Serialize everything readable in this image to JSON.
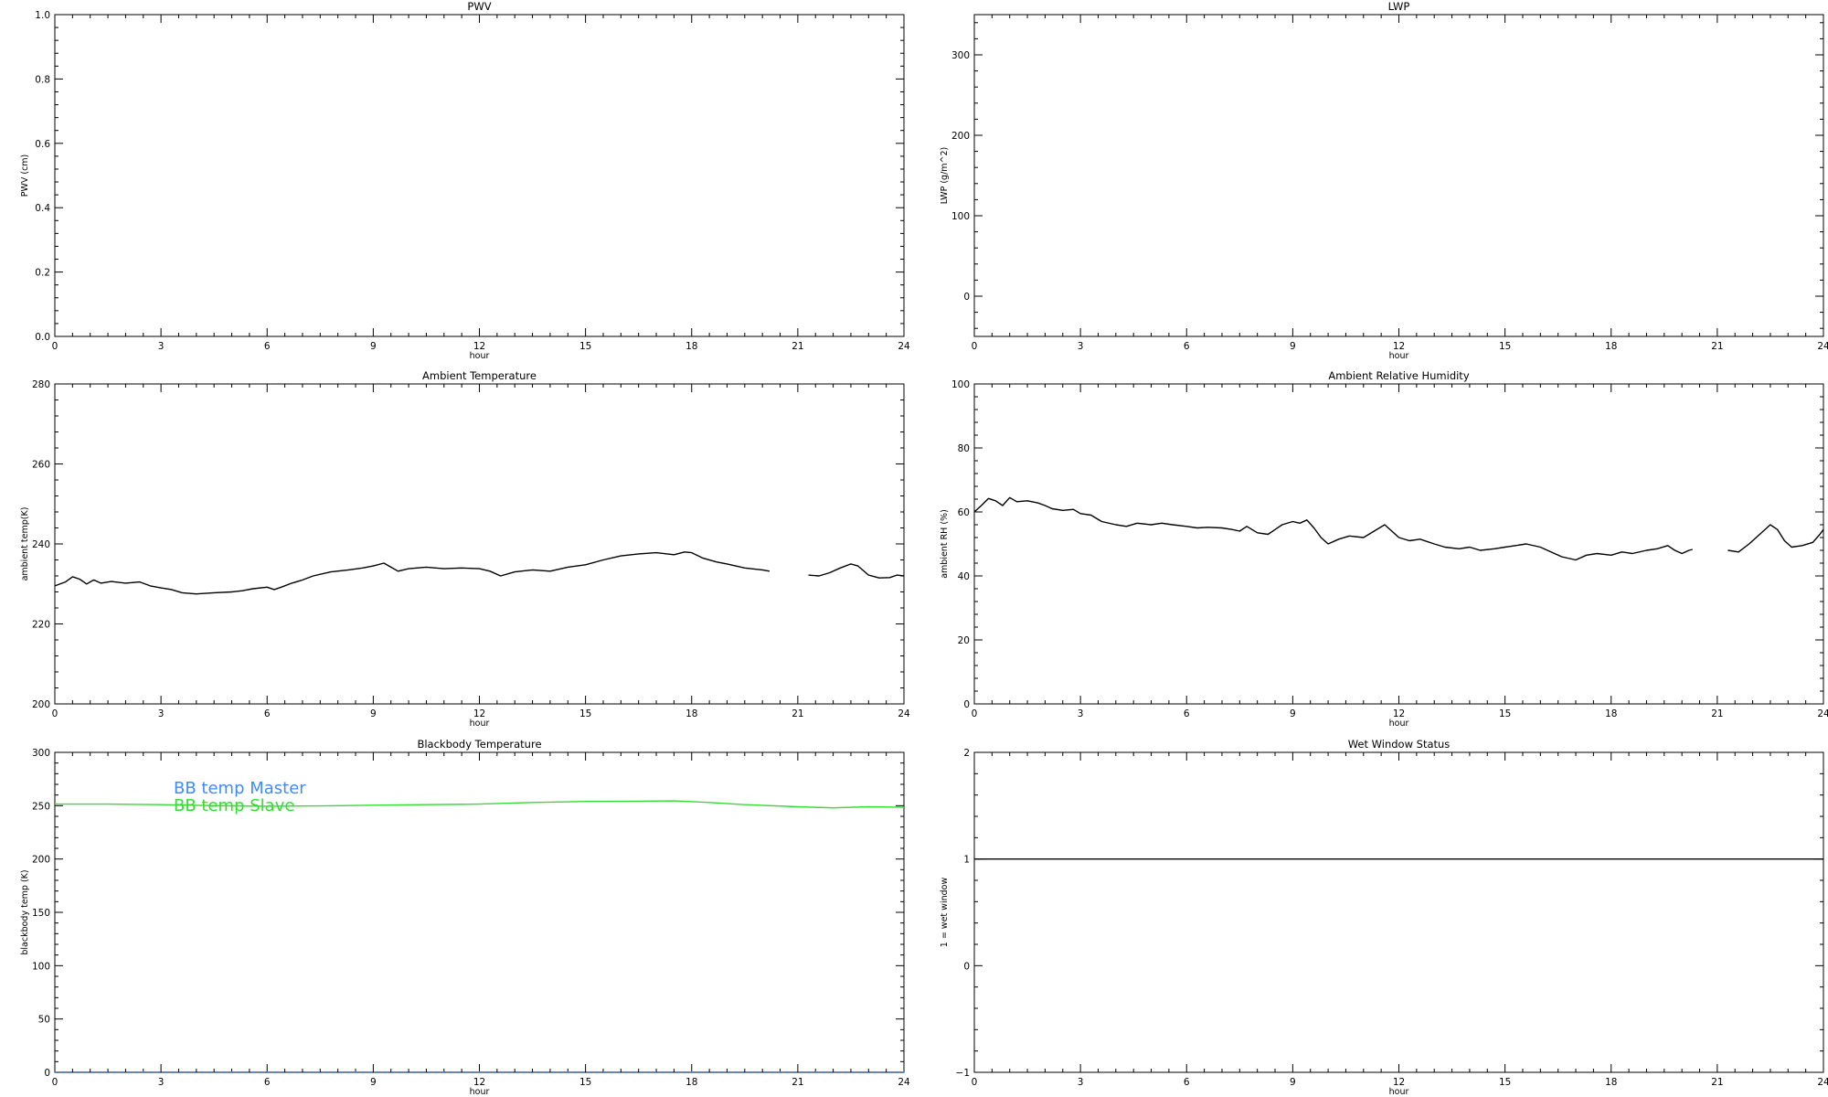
{
  "panels": [
    {
      "id": "pwv",
      "title": "PWV",
      "chart_data": {
        "type": "line",
        "title": "PWV",
        "xlabel": "hour",
        "ylabel": "PWV (cm)",
        "xlim": [
          0,
          24
        ],
        "ylim": [
          0.0,
          1.0
        ],
        "xticks": [
          "0",
          "3",
          "6",
          "9",
          "12",
          "15",
          "18",
          "21",
          "24"
        ],
        "yticks": [
          "0.0",
          "0.2",
          "0.4",
          "0.6",
          "0.8",
          "1.0"
        ],
        "series": []
      }
    },
    {
      "id": "lwp",
      "title": "LWP",
      "chart_data": {
        "type": "line",
        "title": "LWP",
        "xlabel": "hour",
        "ylabel": "LWP (g/m^2)",
        "xlim": [
          0,
          24
        ],
        "ylim": [
          -50,
          350
        ],
        "xticks": [
          "0",
          "3",
          "6",
          "9",
          "12",
          "15",
          "18",
          "21",
          "24"
        ],
        "yticks": [
          "0",
          "100",
          "200",
          "300"
        ],
        "series": []
      }
    },
    {
      "id": "temp",
      "title": "Ambient Temperature",
      "chart_data": {
        "type": "line",
        "title": "Ambient Temperature",
        "xlabel": "hour",
        "ylabel": "ambient temp(K)",
        "xlim": [
          0,
          24
        ],
        "ylim": [
          200,
          280
        ],
        "xticks": [
          "0",
          "3",
          "6",
          "9",
          "12",
          "15",
          "18",
          "21",
          "24"
        ],
        "yticks": [
          "200",
          "220",
          "240",
          "260",
          "280"
        ],
        "series": [
          {
            "color": "#000000",
            "segments": [
              [
                [
                  0,
                  229.5
                ],
                [
                  0.3,
                  230.5
                ],
                [
                  0.5,
                  231.8
                ],
                [
                  0.7,
                  231.2
                ],
                [
                  0.9,
                  230
                ],
                [
                  1.1,
                  231
                ],
                [
                  1.3,
                  230.2
                ],
                [
                  1.6,
                  230.6
                ],
                [
                  2,
                  230.2
                ],
                [
                  2.4,
                  230.5
                ],
                [
                  2.7,
                  229.5
                ],
                [
                  3,
                  229
                ],
                [
                  3.3,
                  228.6
                ],
                [
                  3.6,
                  227.8
                ],
                [
                  4,
                  227.5
                ],
                [
                  4.5,
                  227.8
                ],
                [
                  5,
                  228
                ],
                [
                  5.3,
                  228.3
                ],
                [
                  5.6,
                  228.8
                ],
                [
                  6,
                  229.2
                ],
                [
                  6.2,
                  228.6
                ],
                [
                  6.4,
                  229.2
                ],
                [
                  6.7,
                  230.2
                ],
                [
                  7,
                  231
                ],
                [
                  7.3,
                  232
                ],
                [
                  7.8,
                  233
                ],
                [
                  8.3,
                  233.5
                ],
                [
                  8.7,
                  234
                ],
                [
                  9,
                  234.5
                ],
                [
                  9.3,
                  235.2
                ],
                [
                  9.5,
                  234.2
                ],
                [
                  9.7,
                  233.2
                ],
                [
                  10,
                  233.8
                ],
                [
                  10.5,
                  234.2
                ],
                [
                  11,
                  233.8
                ],
                [
                  11.5,
                  234
                ],
                [
                  12,
                  233.8
                ],
                [
                  12.3,
                  233.2
                ],
                [
                  12.6,
                  232
                ],
                [
                  13,
                  233
                ],
                [
                  13.5,
                  233.5
                ],
                [
                  14,
                  233.2
                ],
                [
                  14.5,
                  234.2
                ],
                [
                  15,
                  234.8
                ],
                [
                  15.5,
                  236
                ],
                [
                  16,
                  237
                ],
                [
                  16.5,
                  237.5
                ],
                [
                  17,
                  237.8
                ],
                [
                  17.5,
                  237.3
                ],
                [
                  17.8,
                  238
                ],
                [
                  18,
                  237.8
                ],
                [
                  18.3,
                  236.5
                ],
                [
                  18.7,
                  235.5
                ],
                [
                  19,
                  235
                ],
                [
                  19.5,
                  234
                ],
                [
                  20,
                  233.5
                ],
                [
                  20.2,
                  233.2
                ]
              ],
              [
                [
                  21.3,
                  232.2
                ],
                [
                  21.6,
                  232
                ],
                [
                  21.9,
                  232.8
                ],
                [
                  22.2,
                  234
                ],
                [
                  22.5,
                  235
                ],
                [
                  22.7,
                  234.5
                ],
                [
                  23,
                  232.2
                ],
                [
                  23.3,
                  231.5
                ],
                [
                  23.6,
                  231.6
                ],
                [
                  23.8,
                  232.2
                ],
                [
                  24,
                  232
                ]
              ]
            ]
          }
        ]
      }
    },
    {
      "id": "rh",
      "title": "Ambient Relative Humidity",
      "chart_data": {
        "type": "line",
        "title": "Ambient Relative Humidity",
        "xlabel": "hour",
        "ylabel": "ambient RH (%)",
        "xlim": [
          0,
          24
        ],
        "ylim": [
          0,
          100
        ],
        "xticks": [
          "0",
          "3",
          "6",
          "9",
          "12",
          "15",
          "18",
          "21",
          "24"
        ],
        "yticks": [
          "0",
          "20",
          "40",
          "60",
          "80",
          "100"
        ],
        "series": [
          {
            "color": "#000000",
            "segments": [
              [
                [
                  0,
                  60
                ],
                [
                  0.2,
                  62
                ],
                [
                  0.4,
                  64.2
                ],
                [
                  0.6,
                  63.5
                ],
                [
                  0.8,
                  62
                ],
                [
                  1,
                  64.5
                ],
                [
                  1.2,
                  63.2
                ],
                [
                  1.5,
                  63.5
                ],
                [
                  1.8,
                  62.8
                ],
                [
                  2,
                  62
                ],
                [
                  2.2,
                  61
                ],
                [
                  2.5,
                  60.5
                ],
                [
                  2.8,
                  60.8
                ],
                [
                  3,
                  59.5
                ],
                [
                  3.3,
                  59
                ],
                [
                  3.6,
                  57
                ],
                [
                  4,
                  56
                ],
                [
                  4.3,
                  55.5
                ],
                [
                  4.6,
                  56.5
                ],
                [
                  5,
                  56
                ],
                [
                  5.3,
                  56.5
                ],
                [
                  5.6,
                  56
                ],
                [
                  6,
                  55.5
                ],
                [
                  6.3,
                  55
                ],
                [
                  6.6,
                  55.2
                ],
                [
                  7,
                  55
                ],
                [
                  7.3,
                  54.5
                ],
                [
                  7.5,
                  54
                ],
                [
                  7.7,
                  55.5
                ],
                [
                  8,
                  53.5
                ],
                [
                  8.3,
                  53
                ],
                [
                  8.5,
                  54.5
                ],
                [
                  8.7,
                  56
                ],
                [
                  9,
                  57
                ],
                [
                  9.2,
                  56.5
                ],
                [
                  9.4,
                  57.5
                ],
                [
                  9.6,
                  55
                ],
                [
                  9.8,
                  52
                ],
                [
                  10,
                  50
                ],
                [
                  10.3,
                  51.5
                ],
                [
                  10.6,
                  52.5
                ],
                [
                  11,
                  52
                ],
                [
                  11.3,
                  54
                ],
                [
                  11.6,
                  56
                ],
                [
                  11.8,
                  54
                ],
                [
                  12,
                  52
                ],
                [
                  12.3,
                  51
                ],
                [
                  12.6,
                  51.5
                ],
                [
                  13,
                  50
                ],
                [
                  13.3,
                  49
                ],
                [
                  13.7,
                  48.5
                ],
                [
                  14,
                  49
                ],
                [
                  14.3,
                  48
                ],
                [
                  14.7,
                  48.5
                ],
                [
                  15,
                  49
                ],
                [
                  15.3,
                  49.5
                ],
                [
                  15.6,
                  50
                ],
                [
                  16,
                  49
                ],
                [
                  16.3,
                  47.5
                ],
                [
                  16.6,
                  46
                ],
                [
                  17,
                  45
                ],
                [
                  17.3,
                  46.5
                ],
                [
                  17.6,
                  47
                ],
                [
                  18,
                  46.5
                ],
                [
                  18.3,
                  47.5
                ],
                [
                  18.6,
                  47
                ],
                [
                  19,
                  48
                ],
                [
                  19.3,
                  48.5
                ],
                [
                  19.6,
                  49.5
                ],
                [
                  19.8,
                  48
                ],
                [
                  20,
                  47
                ],
                [
                  20.2,
                  48
                ],
                [
                  20.3,
                  48.3
                ]
              ],
              [
                [
                  21.3,
                  48
                ],
                [
                  21.6,
                  47.5
                ],
                [
                  21.9,
                  50
                ],
                [
                  22.2,
                  53
                ],
                [
                  22.5,
                  56
                ],
                [
                  22.7,
                  54.5
                ],
                [
                  22.9,
                  51
                ],
                [
                  23.1,
                  49
                ],
                [
                  23.4,
                  49.5
                ],
                [
                  23.7,
                  50.5
                ],
                [
                  23.9,
                  53
                ],
                [
                  24,
                  54.5
                ]
              ]
            ]
          }
        ]
      }
    },
    {
      "id": "bb",
      "title": "Blackbody Temperature",
      "chart_data": {
        "type": "line",
        "title": "Blackbody Temperature",
        "xlabel": "hour",
        "ylabel": "blackbody temp (K)",
        "xlim": [
          0,
          24
        ],
        "ylim": [
          0,
          300
        ],
        "xticks": [
          "0",
          "3",
          "6",
          "9",
          "12",
          "15",
          "18",
          "21",
          "24"
        ],
        "yticks": [
          "0",
          "50",
          "100",
          "150",
          "200",
          "250",
          "300"
        ],
        "legend": [
          {
            "label": "BB temp Master",
            "color": "#3d8bff"
          },
          {
            "label": "BB temp Slave",
            "color": "#33dd33"
          }
        ],
        "series": [
          {
            "name": "BB temp Master",
            "color": "#3d8bff",
            "dashed": true,
            "segments": [
              [
                [
                  0,
                  0
                ],
                [
                  24,
                  0
                ]
              ]
            ]
          },
          {
            "name": "BB temp Slave",
            "color": "#33dd33",
            "segments": [
              [
                [
                  0,
                  251.5
                ],
                [
                  1.5,
                  251.5
                ],
                [
                  3,
                  251
                ],
                [
                  4.5,
                  250
                ],
                [
                  6,
                  249.5
                ],
                [
                  7.5,
                  249.8
                ],
                [
                  9,
                  250.5
                ],
                [
                  10.5,
                  251
                ],
                [
                  12,
                  251.5
                ],
                [
                  13.5,
                  253
                ],
                [
                  15,
                  254
                ],
                [
                  16.5,
                  254.2
                ],
                [
                  17.5,
                  254.5
                ],
                [
                  18.5,
                  253
                ],
                [
                  19.5,
                  251
                ],
                [
                  21,
                  249
                ],
                [
                  22,
                  248
                ],
                [
                  23,
                  249
                ],
                [
                  24,
                  248.5
                ]
              ]
            ]
          }
        ]
      }
    },
    {
      "id": "wet",
      "title": "Wet Window Status",
      "chart_data": {
        "type": "line",
        "title": "Wet Window Status",
        "xlabel": "hour",
        "ylabel": "1 = wet window",
        "xlim": [
          0,
          24
        ],
        "ylim": [
          -1,
          2
        ],
        "xticks": [
          "0",
          "3",
          "6",
          "9",
          "12",
          "15",
          "18",
          "21",
          "24"
        ],
        "yticks": [
          "−1",
          "0",
          "1",
          "2"
        ],
        "series": [
          {
            "color": "#000000",
            "segments": [
              [
                [
                  0,
                  1
                ],
                [
                  24,
                  1
                ]
              ]
            ]
          }
        ]
      }
    }
  ]
}
